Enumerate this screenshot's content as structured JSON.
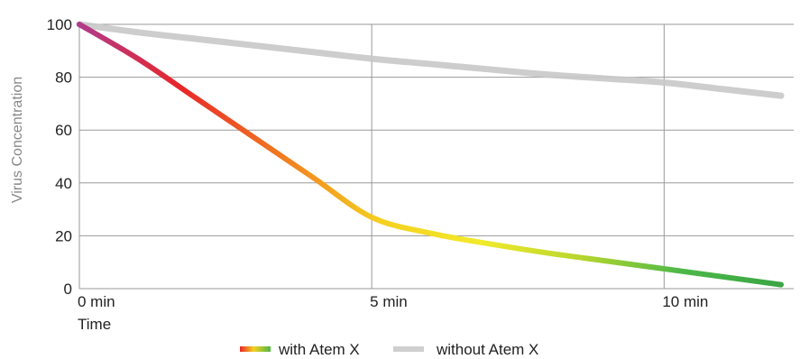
{
  "chart_data": {
    "type": "line",
    "xlabel": "Time",
    "ylabel": "Virus Concentration",
    "xlim": [
      0,
      12
    ],
    "ylim": [
      0,
      100
    ],
    "yticks": [
      0,
      20,
      40,
      60,
      80,
      100
    ],
    "xticks": [
      {
        "value": 0,
        "label": "0 min"
      },
      {
        "value": 5,
        "label": "5 min"
      },
      {
        "value": 10,
        "label": "10 min"
      }
    ],
    "grid": true,
    "legend_position": "bottom-center",
    "series": [
      {
        "name": "with Atem X",
        "color_stops": [
          "#b03a8c",
          "#e8262a",
          "#f07a20",
          "#f5d020",
          "#f2ea2a",
          "#b7d62e",
          "#4cb848",
          "#3aa544"
        ],
        "x": [
          0,
          1,
          2,
          3,
          4,
          5,
          6,
          7,
          8,
          9,
          10,
          11,
          12
        ],
        "y": [
          100,
          87,
          72,
          57,
          42,
          27,
          21,
          17,
          13.5,
          10.5,
          7.5,
          4.5,
          1.5
        ]
      },
      {
        "name": "without Atem X",
        "color": "#c8c8c8",
        "x": [
          0,
          1,
          2,
          3,
          4,
          5,
          6,
          7,
          8,
          9,
          10,
          11,
          12
        ],
        "y": [
          100,
          97,
          94.5,
          92,
          89.5,
          87,
          85,
          83,
          81,
          79.5,
          78,
          75.5,
          73
        ]
      }
    ]
  }
}
